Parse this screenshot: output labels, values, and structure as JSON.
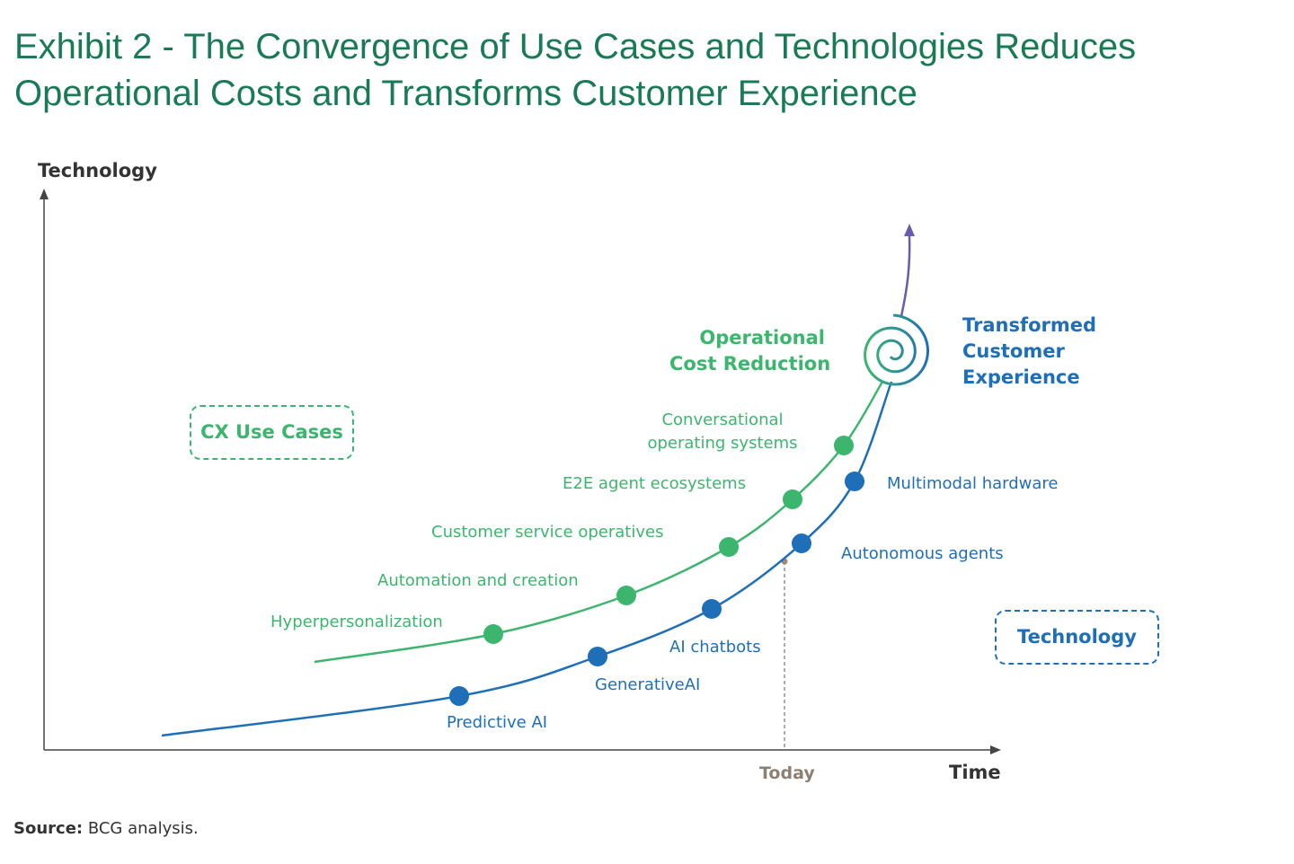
{
  "title_line1": "Exhibit 2 - The Convergence of Use Cases and Technologies Reduces",
  "title_line2": "Operational Costs and Transforms Customer Experience",
  "y_axis_label": "Technology",
  "x_axis_label": "Time",
  "today_label": "Today",
  "cx_box_label": "CX Use Cases",
  "tech_box_label": "Technology",
  "operational": {
    "line1": "Operational",
    "line2": "Cost Reduction"
  },
  "transformed": {
    "line1": "Transformed",
    "line2": "Customer",
    "line3": "Experience"
  },
  "use_cases": [
    {
      "label": "Hyperpersonalization"
    },
    {
      "label": "Automation and creation"
    },
    {
      "label": "Customer service operatives"
    },
    {
      "label": "E2E agent ecosystems"
    },
    {
      "label": "Conversational",
      "label2": "operating systems"
    }
  ],
  "technologies": [
    {
      "label": "Predictive AI"
    },
    {
      "label": "GenerativeAI"
    },
    {
      "label": "AI chatbots"
    },
    {
      "label": "Autonomous agents"
    },
    {
      "label": "Multimodal hardware"
    }
  ],
  "source_bold": "Source:",
  "source_text": " BCG analysis.",
  "colors": {
    "title": "#197a56",
    "use_cases": "#3cb66e",
    "technology": "#1f6fb8",
    "arrow": "#6a5aab",
    "today": "#8c7f73"
  }
}
